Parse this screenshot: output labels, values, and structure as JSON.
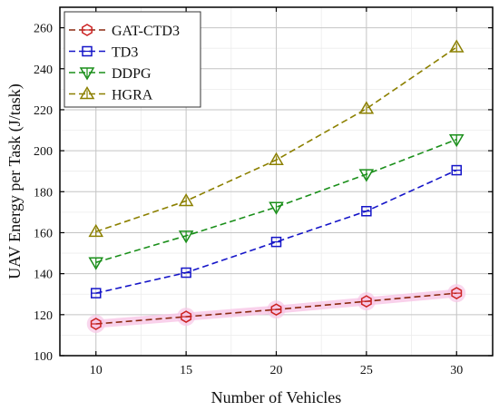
{
  "chart_data": {
    "type": "line",
    "xlabel": "Number of Vehicles",
    "ylabel": "UAV Energy per Task (J/task)",
    "x": [
      10,
      15,
      20,
      25,
      30
    ],
    "xlim": [
      8,
      32
    ],
    "ylim": [
      100,
      270
    ],
    "xticks": [
      10,
      15,
      20,
      25,
      30
    ],
    "yticks": [
      100,
      120,
      140,
      160,
      180,
      200,
      220,
      240,
      260
    ],
    "grid": true,
    "legend_position": "top-left",
    "series": [
      {
        "name": "GAT-CTD3",
        "values": [
          115.5,
          119,
          122.5,
          126.5,
          130.5
        ],
        "color": "#cc2222",
        "line_color": "#8b2a10",
        "marker": "hexagon",
        "highlight_color": "#f7c6e6"
      },
      {
        "name": "TD3",
        "values": [
          130.5,
          140.5,
          155.5,
          170.5,
          190.5
        ],
        "color": "#1515c8",
        "line_color": "#1515c8",
        "marker": "square"
      },
      {
        "name": "DDPG",
        "values": [
          145.5,
          158.5,
          172.5,
          188.5,
          205.5
        ],
        "color": "#1a8f1a",
        "line_color": "#1a8f1a",
        "marker": "triangle-down"
      },
      {
        "name": "HGRA",
        "values": [
          160.5,
          175.5,
          195.5,
          220.5,
          250.5
        ],
        "color": "#8c8000",
        "line_color": "#8c8000",
        "marker": "triangle-up"
      }
    ]
  }
}
